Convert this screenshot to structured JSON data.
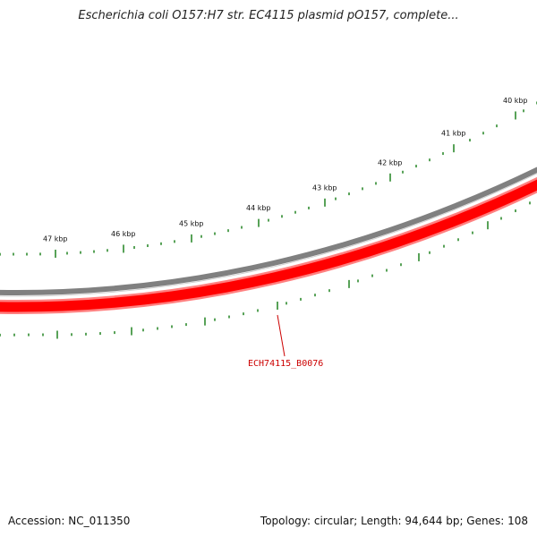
{
  "title": "Escherichia coli O157:H7 str. EC4115 plasmid pO157, complete...",
  "footer": {
    "accession": "Accession: NC_011350",
    "summary": "Topology: circular; Length: 94,644 bp; Genes: 108"
  },
  "ruler": {
    "labels": [
      "40 kbp",
      "41 kbp",
      "42 kbp",
      "43 kbp",
      "44 kbp",
      "45 kbp",
      "46 kbp",
      "47 kbp"
    ],
    "tick_color": "#2e8b2e"
  },
  "tracks": {
    "backbone_color": "#808080",
    "gene_color": "#ff0000",
    "gene_halo_color": "#ff8080"
  },
  "gene_annotation": {
    "label": "ECH74115_B0076",
    "color": "#cc0000"
  }
}
